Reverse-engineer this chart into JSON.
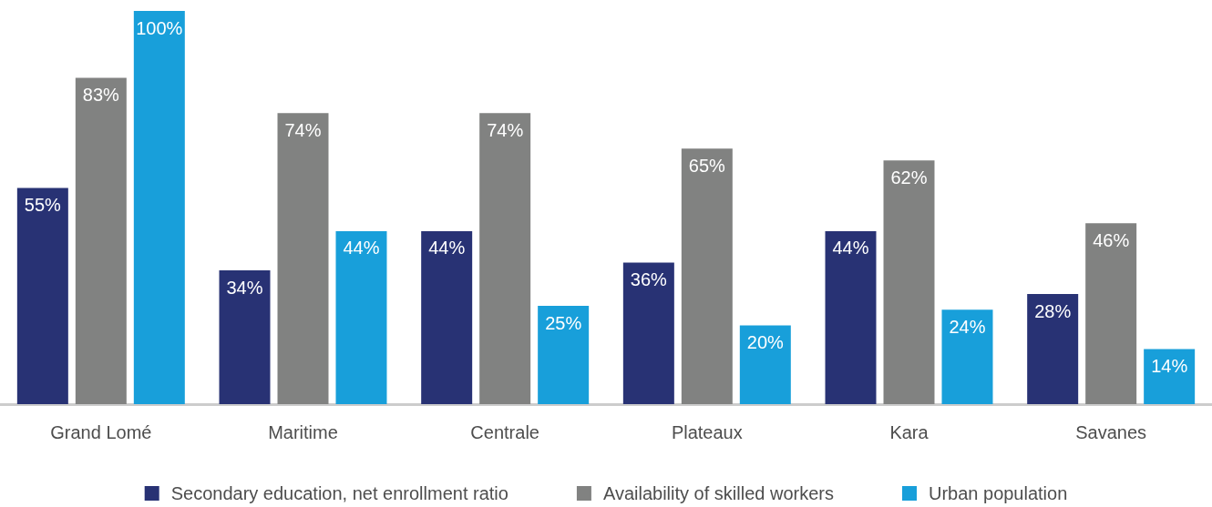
{
  "chart_data": {
    "type": "bar",
    "categories": [
      "Grand Lomé",
      "Maritime",
      "Centrale",
      "Plateaux",
      "Kara",
      "Savanes"
    ],
    "series": [
      {
        "name": "Secondary education, net enrollment ratio",
        "color": "#283274",
        "values": [
          55,
          34,
          44,
          36,
          44,
          28
        ],
        "value_labels": [
          "55%",
          "34%",
          "44%",
          "36%",
          "44%",
          "28%"
        ]
      },
      {
        "name": "Availability of skilled workers",
        "color": "#818281",
        "values": [
          83,
          74,
          74,
          65,
          62,
          46
        ],
        "value_labels": [
          "83%",
          "74%",
          "74%",
          "65%",
          "62%",
          "46%"
        ]
      },
      {
        "name": "Urban population",
        "color": "#189fda",
        "values": [
          100,
          44,
          25,
          20,
          24,
          14
        ],
        "value_labels": [
          "100%",
          "44%",
          "25%",
          "20%",
          "24%",
          "14%"
        ]
      }
    ],
    "ylim": [
      0,
      100
    ],
    "legend": "bottom",
    "tick_labels": "x"
  }
}
